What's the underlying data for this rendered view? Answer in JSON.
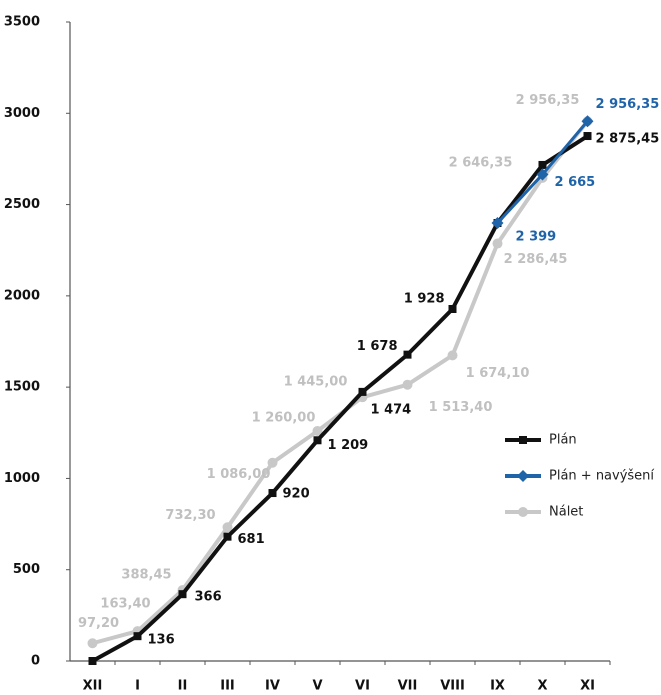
{
  "chart_data": {
    "type": "line",
    "categories": [
      "XII",
      "I",
      "II",
      "III",
      "IV",
      "V",
      "VI",
      "VII",
      "VIII",
      "IX",
      "X",
      "XI"
    ],
    "series": [
      {
        "name": "Plán",
        "color": "#111111",
        "marker": "square",
        "values": [
          0,
          136,
          366,
          681,
          920,
          1209,
          1474,
          1678,
          1928,
          2399,
          2717,
          2875.45
        ],
        "value_labels": [
          null,
          "136",
          "366",
          "681",
          "920",
          "1 209",
          "1 474",
          "1 678",
          "1 928",
          null,
          null,
          "2 875,45"
        ]
      },
      {
        "name": "Plán + navýšení",
        "color": "#1f63a8",
        "marker": "diamond",
        "values": [
          null,
          null,
          null,
          null,
          null,
          null,
          null,
          null,
          null,
          2399,
          2665,
          2956.35
        ],
        "value_labels": [
          null,
          null,
          null,
          null,
          null,
          null,
          null,
          null,
          null,
          "2 399",
          "2 665",
          "2 956,35"
        ]
      },
      {
        "name": "Nálet",
        "color": "#c8c8c8",
        "marker": "circle",
        "values": [
          97.2,
          163.4,
          388.45,
          732.3,
          1086,
          1260,
          1445,
          1513.4,
          1674.1,
          2286.45,
          2646.35,
          2956.35
        ],
        "value_labels": [
          "97,20",
          "163,40",
          "388,45",
          "732,30",
          "1 086,00",
          "1 260,00",
          "1 445,00",
          "1 513,40",
          "1 674,10",
          "2 286,45",
          "2 646,35",
          "2 956,35"
        ]
      }
    ],
    "ylim": [
      0,
      3500
    ],
    "yticks": [
      0,
      500,
      1000,
      1500,
      2000,
      2500,
      3000,
      3500
    ],
    "grid": false,
    "legend": "right"
  }
}
